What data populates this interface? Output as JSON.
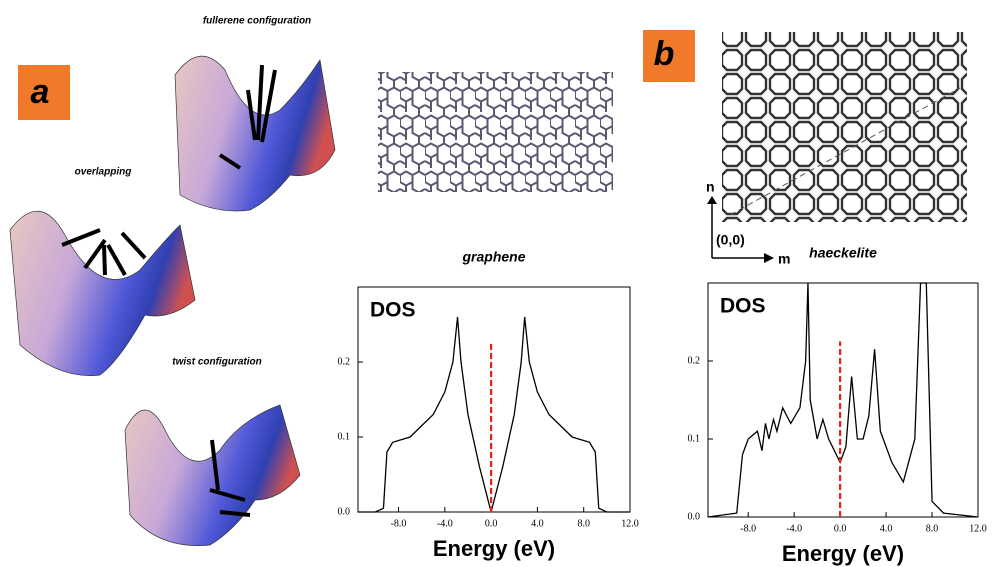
{
  "panels": {
    "a": "a",
    "b": "b"
  },
  "captions": {
    "fullerene": "fullerene configuration",
    "overlapping": "overlapping",
    "twist": "twist configuration"
  },
  "lattice": {
    "origin": "(0,0)",
    "m": "m",
    "n": "n"
  },
  "chart_data": [
    {
      "type": "line",
      "title": "graphene",
      "ylabel": "DOS",
      "xlabel": "Energy (eV)",
      "x": [
        -11.5,
        -10,
        -9.3,
        -9,
        -8.5,
        -7,
        -5,
        -4,
        -3.3,
        -2.9,
        -2.6,
        -2,
        -1,
        0,
        1,
        2,
        2.6,
        2.9,
        3.3,
        4,
        5,
        7,
        8.5,
        9,
        9.3,
        10,
        12
      ],
      "series": [
        {
          "color": "#000000",
          "values": [
            0,
            0,
            0.005,
            0.08,
            0.093,
            0.1,
            0.13,
            0.16,
            0.2,
            0.26,
            0.2,
            0.13,
            0.06,
            0,
            0.06,
            0.13,
            0.2,
            0.26,
            0.2,
            0.16,
            0.13,
            0.1,
            0.093,
            0.08,
            0.005,
            0,
            0
          ]
        }
      ],
      "xlim": [
        -11.5,
        12
      ],
      "ylim": [
        0,
        0.3
      ],
      "xticks": [
        {
          "value": -8,
          "label": "-8.0"
        },
        {
          "value": -4,
          "label": "-4.0"
        },
        {
          "value": 0,
          "label": "0.0"
        },
        {
          "value": 4,
          "label": "4.0"
        },
        {
          "value": 8,
          "label": "8.0"
        },
        {
          "value": 12,
          "label": "12.0"
        }
      ],
      "yticks": [
        {
          "value": 0,
          "label": "0.0"
        },
        0.1,
        0.2
      ],
      "vline": 0,
      "vline_color": "#e8201a"
    },
    {
      "type": "line",
      "title": "haeckelite",
      "ylabel": "DOS",
      "xlabel": "Energy (eV)",
      "x": [
        -11.5,
        -9,
        -8.5,
        -8,
        -7.2,
        -6.8,
        -6.5,
        -6.2,
        -5.8,
        -5.5,
        -5,
        -4.3,
        -3.5,
        -3,
        -2.8,
        -2.6,
        -2,
        -1.5,
        -1,
        -0.5,
        0,
        0.5,
        1,
        1.5,
        2,
        2.5,
        3,
        3.5,
        4.5,
        5.5,
        6.5,
        7,
        7.5,
        8,
        9,
        12
      ],
      "series": [
        {
          "color": "#000000",
          "values": [
            0,
            0.005,
            0.08,
            0.1,
            0.11,
            0.085,
            0.12,
            0.1,
            0.125,
            0.11,
            0.14,
            0.12,
            0.14,
            0.2,
            0.3,
            0.15,
            0.1,
            0.125,
            0.1,
            0.085,
            0.07,
            0.09,
            0.18,
            0.1,
            0.1,
            0.13,
            0.215,
            0.11,
            0.07,
            0.045,
            0.1,
            0.3,
            0.3,
            0.02,
            0.005,
            0
          ]
        }
      ],
      "xlim": [
        -11.5,
        12
      ],
      "ylim": [
        0,
        0.3
      ],
      "xticks": [
        {
          "value": -8,
          "label": "-8.0"
        },
        {
          "value": -4,
          "label": "-4.0"
        },
        {
          "value": 0,
          "label": "0.0"
        },
        {
          "value": 4,
          "label": "4.0"
        },
        {
          "value": 8,
          "label": "8.0"
        },
        {
          "value": 12,
          "label": "12.0"
        }
      ],
      "yticks": [
        {
          "value": 0,
          "label": "0.0"
        },
        0.1,
        0.2
      ],
      "vline": 0,
      "vline_color": "#e8201a"
    }
  ]
}
